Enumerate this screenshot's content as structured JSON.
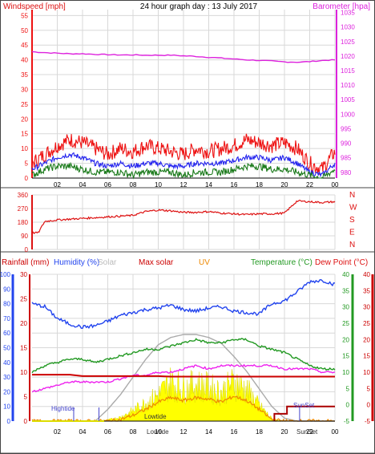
{
  "title": "24 hour graph day : 13 July 2017",
  "colors": {
    "wind": "#ee1111",
    "gust_dark": "#1a7a1a",
    "wind_avg": "#2222ee",
    "baro": "#dd22dd",
    "dir": "#dd1111",
    "humidity": "#2244ee",
    "rain": "#cc0000",
    "temp": "#229922",
    "dew": "#ee22ee",
    "solar": "#ffff00",
    "solar_edge": "#dddd00",
    "uv": "#ee8800",
    "maxsolar": "#aaaaaa",
    "grid": "#d8d8d8",
    "tide": "#4444cc"
  },
  "x_ticks": [
    "02",
    "04",
    "06",
    "08",
    "10",
    "12",
    "14",
    "16",
    "18",
    "20",
    "22",
    "00"
  ],
  "chart_data": [
    {
      "type": "line",
      "panel": "wind_baro",
      "title": "24 hour graph day : 13 July 2017",
      "y_left_label": "Windspeed [mph]",
      "y_right_label": "Barometer [hpa]",
      "y_left_ticks": [
        "0",
        "5",
        "10",
        "15",
        "20",
        "25",
        "30",
        "35",
        "40",
        "45",
        "50",
        "55"
      ],
      "y_left_range": [
        0,
        57
      ],
      "y_right_ticks": [
        "980",
        "985",
        "990",
        "995",
        "1000",
        "1005",
        "1010",
        "1015",
        "1020",
        "1025",
        "1030",
        "1035"
      ],
      "y_right_range": [
        978,
        1036
      ],
      "x_hours": [
        0,
        1,
        2,
        3,
        4,
        5,
        6,
        7,
        8,
        9,
        10,
        11,
        12,
        13,
        14,
        15,
        16,
        17,
        18,
        19,
        20,
        21,
        22,
        23,
        24
      ],
      "series": [
        {
          "name": "Barometer",
          "axis": "right",
          "values": [
            1021.5,
            1021.2,
            1021.0,
            1020.8,
            1020.8,
            1020.6,
            1020.5,
            1020.4,
            1020.4,
            1020.3,
            1020.3,
            1020.3,
            1020.1,
            1019.9,
            1019.6,
            1019.3,
            1019.0,
            1018.7,
            1018.5,
            1018.3,
            1018.0,
            1017.9,
            1018.1,
            1018.5,
            1018.7
          ]
        },
        {
          "name": "Gust",
          "axis": "left",
          "values": [
            5,
            8,
            11,
            13,
            12,
            10,
            8,
            10,
            9,
            11,
            10,
            9,
            8,
            10,
            9,
            10,
            11,
            13,
            12,
            11,
            12,
            10,
            5,
            3,
            9
          ]
        },
        {
          "name": "Wind avg",
          "axis": "left",
          "values": [
            3,
            5,
            7,
            8,
            7,
            5,
            4,
            5,
            4,
            5,
            5,
            4,
            4,
            5,
            5,
            5,
            6,
            7,
            7,
            6,
            7,
            5,
            2,
            1,
            5
          ]
        },
        {
          "name": "Wind",
          "axis": "left",
          "values": [
            1,
            3,
            4,
            4,
            3,
            2,
            2,
            2,
            1,
            2,
            2,
            2,
            1,
            2,
            2,
            2,
            3,
            4,
            4,
            3,
            3,
            2,
            1,
            0,
            3
          ]
        }
      ]
    },
    {
      "type": "line",
      "panel": "wind_direction",
      "y_left_ticks": [
        "0",
        "90",
        "180",
        "270",
        "360"
      ],
      "y_left_range": [
        0,
        360
      ],
      "compass": [
        "N",
        "W",
        "S",
        "E",
        "N"
      ],
      "x_hours": [
        0,
        0.5,
        1,
        2,
        3,
        4,
        5,
        6,
        7,
        8,
        9,
        10,
        11,
        12,
        13,
        14,
        15,
        16,
        17,
        18,
        19,
        20,
        21,
        22,
        23,
        24
      ],
      "values": [
        110,
        110,
        185,
        195,
        200,
        205,
        210,
        215,
        220,
        225,
        250,
        260,
        255,
        245,
        245,
        250,
        240,
        235,
        230,
        235,
        235,
        240,
        320,
        315,
        310,
        315
      ]
    },
    {
      "type": "line",
      "panel": "rain_humidity_temp_solar",
      "labels": {
        "rain": "Rainfall (mm)",
        "humidity": "Humidity (%)",
        "solar": "Solar",
        "max_solar": "Max solar",
        "uv": "UV",
        "temperature": "Temperature (°C)",
        "dew_point": "Dew Point (°C)"
      },
      "y_humidity_ticks": [
        "0",
        "10",
        "20",
        "30",
        "40",
        "50",
        "60",
        "70",
        "80",
        "90",
        "100"
      ],
      "y_humidity_range": [
        0,
        100
      ],
      "y_rain_ticks": [
        "0",
        "5",
        "10",
        "15",
        "20",
        "25",
        "30"
      ],
      "y_rain_range": [
        0,
        30
      ],
      "y_temp_ticks": [
        "-5",
        "0",
        "5",
        "10",
        "15",
        "20",
        "25",
        "30",
        "35",
        "40"
      ],
      "y_temp_range": [
        -5,
        40
      ],
      "x_hours": [
        0,
        1,
        2,
        3,
        4,
        5,
        6,
        7,
        8,
        9,
        10,
        11,
        12,
        13,
        14,
        15,
        16,
        17,
        18,
        19,
        20,
        21,
        22,
        23,
        24
      ],
      "series": [
        {
          "name": "Humidity",
          "values": [
            80,
            78,
            70,
            66,
            64,
            65,
            68,
            72,
            74,
            76,
            77,
            79,
            76,
            75,
            77,
            78,
            75,
            74,
            73,
            80,
            82,
            88,
            95,
            96,
            93
          ]
        },
        {
          "name": "Temperature",
          "values": [
            10,
            12,
            13,
            14,
            14,
            13,
            14,
            15,
            16,
            17,
            17,
            18,
            19,
            20,
            19,
            19,
            20,
            20,
            18,
            17,
            16,
            14,
            12,
            11,
            11
          ]
        },
        {
          "name": "Dew point",
          "values": [
            4,
            5,
            6,
            7,
            7,
            7,
            7,
            8,
            9,
            9,
            10,
            10,
            11,
            12,
            11,
            12,
            12,
            12,
            12,
            12,
            11,
            11,
            11,
            10,
            10
          ]
        },
        {
          "name": "Rain",
          "values": [
            9.5,
            9.5,
            9.5,
            9.5,
            9.2,
            9.2,
            9.2,
            9.2,
            9.2,
            9.2,
            9.2,
            9.1,
            9.1,
            9.1,
            9.1,
            9.1,
            9.1,
            9.1,
            9.1,
            9.1,
            9.1,
            9.1,
            9.1,
            9.1,
            9.1
          ]
        },
        {
          "name": "Max solar",
          "values": [
            0,
            0,
            0,
            0,
            0,
            0,
            8,
            18,
            30,
            42,
            52,
            57,
            59,
            59,
            57,
            53,
            44,
            34,
            22,
            10,
            2,
            0,
            0,
            0,
            0
          ]
        },
        {
          "name": "Solar",
          "values": [
            0,
            0,
            0,
            0,
            0,
            0,
            1,
            3,
            8,
            14,
            20,
            30,
            25,
            28,
            26,
            22,
            30,
            24,
            12,
            2,
            0,
            0,
            0,
            0,
            0
          ]
        },
        {
          "name": "UV",
          "values": [
            0,
            0,
            0,
            0,
            0,
            0,
            0,
            1,
            4,
            8,
            13,
            16,
            14,
            16,
            15,
            13,
            17,
            14,
            8,
            1,
            0,
            0,
            0,
            0,
            0
          ]
        },
        {
          "name": "Rain rate",
          "values": [
            0,
            0,
            0,
            0,
            0,
            0,
            0,
            0,
            0,
            0,
            0,
            0,
            0,
            0,
            0,
            0,
            0,
            0,
            0,
            0,
            3,
            3,
            3,
            3,
            3
          ]
        }
      ],
      "annotations": [
        "Hightide",
        "Lowtide",
        "Lowtide",
        "SunSet",
        "SunSet"
      ]
    }
  ]
}
